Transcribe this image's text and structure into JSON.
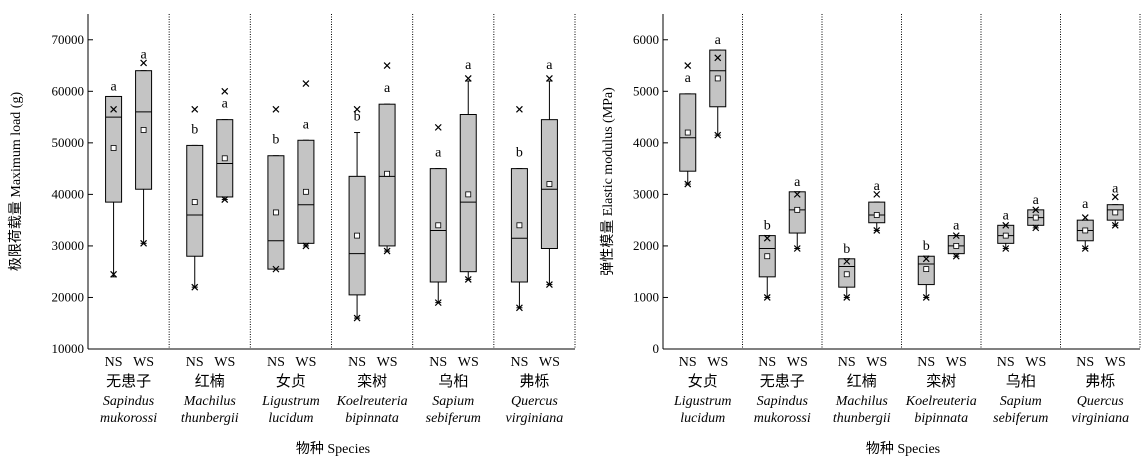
{
  "chart_data": [
    {
      "type": "box",
      "ylabel": "极限荷载量 Maximum load (g)",
      "xlabel": "物种 Species",
      "ylim": [
        10000,
        75000
      ],
      "yticks": [
        10000,
        20000,
        30000,
        40000,
        50000,
        60000,
        70000
      ],
      "group_labels": [
        "NS",
        "WS"
      ],
      "species": [
        {
          "zh": "无患子",
          "la1": "Sapindus",
          "la2": "mukorossi",
          "boxes": [
            {
              "min": 24000,
              "q1": 38500,
              "median": 55000,
              "q3": 59000,
              "max": 59000,
              "mean": 49000,
              "outliers": [
                24500,
                56500
              ],
              "letter": "a"
            },
            {
              "min": 30500,
              "q1": 41000,
              "median": 56000,
              "q3": 64000,
              "max": 64000,
              "mean": 52500,
              "outliers": [
                30500,
                65500
              ],
              "letter": "a"
            }
          ]
        },
        {
          "zh": "红楠",
          "la1": "Machilus",
          "la2": "thunbergii",
          "boxes": [
            {
              "min": 22000,
              "q1": 28000,
              "median": 36000,
              "q3": 49500,
              "max": 49500,
              "mean": 38500,
              "outliers": [
                22000,
                56500
              ],
              "letter": "b"
            },
            {
              "min": 39000,
              "q1": 39500,
              "median": 46000,
              "q3": 54500,
              "max": 54500,
              "mean": 47000,
              "outliers": [
                39000,
                60000
              ],
              "letter": "a"
            }
          ]
        },
        {
          "zh": "女贞",
          "la1": "Ligustrum",
          "la2": "lucidum",
          "boxes": [
            {
              "min": 25500,
              "q1": 25500,
              "median": 31000,
              "q3": 47500,
              "max": 47500,
              "mean": 36500,
              "outliers": [
                25500,
                56500
              ],
              "letter": "b"
            },
            {
              "min": 30000,
              "q1": 30500,
              "median": 38000,
              "q3": 50500,
              "max": 50500,
              "mean": 40500,
              "outliers": [
                30000,
                61500
              ],
              "letter": "a"
            }
          ]
        },
        {
          "zh": "栾树",
          "la1": "Koelreuteria",
          "la2": "bipinnata",
          "boxes": [
            {
              "min": 16000,
              "q1": 20500,
              "median": 28500,
              "q3": 43500,
              "max": 52000,
              "mean": 32000,
              "outliers": [
                16000,
                56500
              ],
              "letter": "b"
            },
            {
              "min": 29000,
              "q1": 30000,
              "median": 43500,
              "q3": 57500,
              "max": 57500,
              "mean": 44000,
              "outliers": [
                29000,
                65000
              ],
              "letter": "a"
            }
          ]
        },
        {
          "zh": "乌桕",
          "la1": "Sapium",
          "la2": "sebiferum",
          "boxes": [
            {
              "min": 19000,
              "q1": 23000,
              "median": 33000,
              "q3": 45000,
              "max": 45000,
              "mean": 34000,
              "outliers": [
                19000,
                53000
              ],
              "letter": "a"
            },
            {
              "min": 23500,
              "q1": 25000,
              "median": 38500,
              "q3": 55500,
              "max": 62000,
              "mean": 40000,
              "outliers": [
                23500,
                62500
              ],
              "letter": "a"
            }
          ]
        },
        {
          "zh": "弗栎",
          "la1": "Quercus",
          "la2": "virginiana",
          "boxes": [
            {
              "min": 18000,
              "q1": 23000,
              "median": 31500,
              "q3": 45000,
              "max": 45000,
              "mean": 34000,
              "outliers": [
                18000,
                56500
              ],
              "letter": "b"
            },
            {
              "min": 22500,
              "q1": 29500,
              "median": 41000,
              "q3": 54500,
              "max": 62000,
              "mean": 42000,
              "outliers": [
                22500,
                62500
              ],
              "letter": "a"
            }
          ]
        }
      ]
    },
    {
      "type": "box",
      "ylabel": "弹性模量 Elastic modulus (MPa)",
      "xlabel": "物种 Species",
      "ylim": [
        0,
        6500
      ],
      "yticks": [
        0,
        1000,
        2000,
        3000,
        4000,
        5000,
        6000
      ],
      "group_labels": [
        "NS",
        "WS"
      ],
      "species": [
        {
          "zh": "女贞",
          "la1": "Ligustrum",
          "la2": "lucidum",
          "boxes": [
            {
              "min": 3200,
              "q1": 3450,
              "median": 4100,
              "q3": 4950,
              "max": 4950,
              "mean": 4200,
              "outliers": [
                3200,
                5500
              ],
              "letter": "a"
            },
            {
              "min": 4150,
              "q1": 4700,
              "median": 5400,
              "q3": 5800,
              "max": 5800,
              "mean": 5250,
              "outliers": [
                4150,
                5650
              ],
              "letter": "a"
            }
          ]
        },
        {
          "zh": "无患子",
          "la1": "Sapindus",
          "la2": "mukorossi",
          "boxes": [
            {
              "min": 1000,
              "q1": 1400,
              "median": 1950,
              "q3": 2200,
              "max": 2200,
              "mean": 1800,
              "outliers": [
                1000,
                2150
              ],
              "letter": "b"
            },
            {
              "min": 1950,
              "q1": 2250,
              "median": 2700,
              "q3": 3050,
              "max": 3050,
              "mean": 2700,
              "outliers": [
                1950,
                3000
              ],
              "letter": "a"
            }
          ]
        },
        {
          "zh": "红楠",
          "la1": "Machilus",
          "la2": "thunbergii",
          "boxes": [
            {
              "min": 1000,
              "q1": 1200,
              "median": 1600,
              "q3": 1750,
              "max": 1750,
              "mean": 1450,
              "outliers": [
                1000,
                1700
              ],
              "letter": "b"
            },
            {
              "min": 2300,
              "q1": 2450,
              "median": 2600,
              "q3": 2850,
              "max": 2850,
              "mean": 2600,
              "outliers": [
                2300,
                3000
              ],
              "letter": "a"
            }
          ]
        },
        {
          "zh": "栾树",
          "la1": "Koelreuteria",
          "la2": "bipinnata",
          "boxes": [
            {
              "min": 1000,
              "q1": 1250,
              "median": 1650,
              "q3": 1800,
              "max": 1800,
              "mean": 1550,
              "outliers": [
                1000,
                1750
              ],
              "letter": "b"
            },
            {
              "min": 1800,
              "q1": 1850,
              "median": 2000,
              "q3": 2200,
              "max": 2200,
              "mean": 2000,
              "outliers": [
                1800,
                2200
              ],
              "letter": "a"
            }
          ]
        },
        {
          "zh": "乌桕",
          "la1": "Sapium",
          "la2": "sebiferum",
          "boxes": [
            {
              "min": 1950,
              "q1": 2050,
              "median": 2200,
              "q3": 2400,
              "max": 2400,
              "mean": 2200,
              "outliers": [
                1950,
                2400
              ],
              "letter": "a"
            },
            {
              "min": 2350,
              "q1": 2400,
              "median": 2550,
              "q3": 2700,
              "max": 2700,
              "mean": 2550,
              "outliers": [
                2350,
                2700
              ],
              "letter": "a"
            }
          ]
        },
        {
          "zh": "弗栎",
          "la1": "Quercus",
          "la2": "virginiana",
          "boxes": [
            {
              "min": 1950,
              "q1": 2100,
              "median": 2300,
              "q3": 2500,
              "max": 2500,
              "mean": 2300,
              "outliers": [
                1950,
                2550
              ],
              "letter": "a"
            },
            {
              "min": 2400,
              "q1": 2500,
              "median": 2700,
              "q3": 2800,
              "max": 2800,
              "mean": 2650,
              "outliers": [
                2400,
                2950
              ],
              "letter": "a"
            }
          ]
        }
      ]
    }
  ],
  "style": {
    "box_fill": "#c4c4c4",
    "axis_color": "#000000",
    "separator": "dotted"
  }
}
